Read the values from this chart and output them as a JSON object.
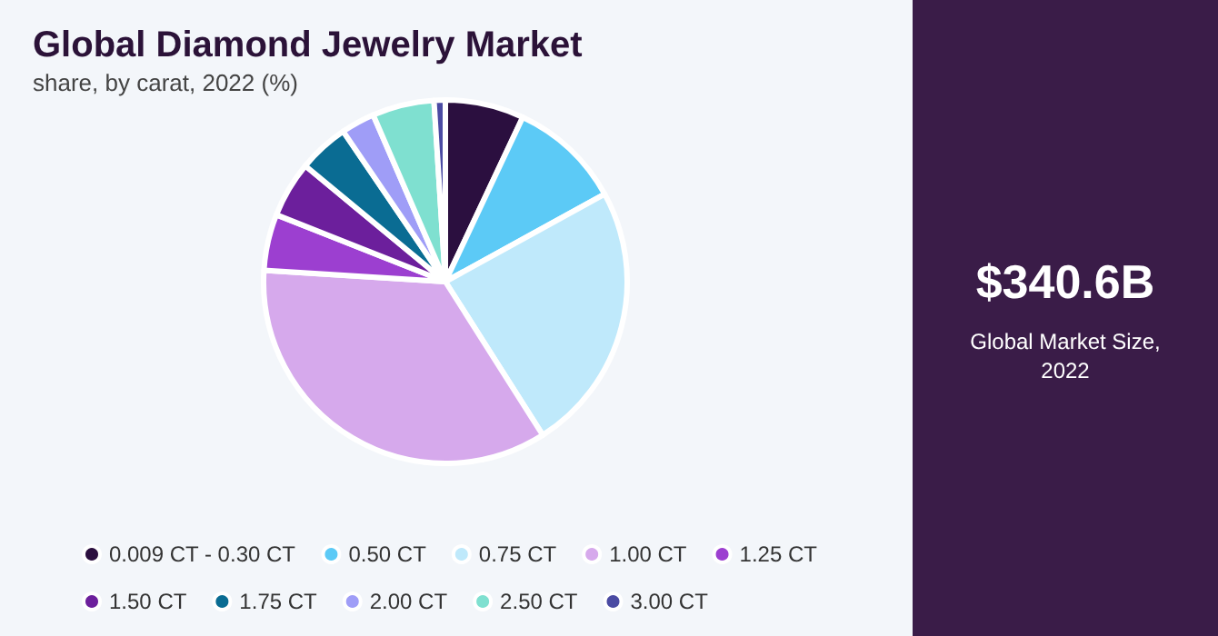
{
  "chart_data": {
    "type": "pie",
    "title": "Global Diamond Jewelry Market",
    "subtitle": "share, by carat, 2022 (%)",
    "categories": [
      "0.009 CT - 0.30 CT",
      "0.50 CT",
      "0.75 CT",
      "1.00 CT",
      "1.25 CT",
      "1.50 CT",
      "1.75 CT",
      "2.00 CT",
      "2.50 CT",
      "3.00 CT"
    ],
    "values": [
      7,
      10,
      24,
      35,
      5,
      5,
      4.5,
      3,
      5.5,
      1
    ],
    "colors": [
      "#2b0f3f",
      "#5ccaf6",
      "#bfe9fb",
      "#d6a9ec",
      "#9c3fd0",
      "#6c1f9c",
      "#0a6c93",
      "#9f9df7",
      "#7fe0d0",
      "#4b4ba3"
    ],
    "legend": "bottom",
    "annotations": [
      "$340.6B",
      "Global Market Size, 2022"
    ]
  }
}
